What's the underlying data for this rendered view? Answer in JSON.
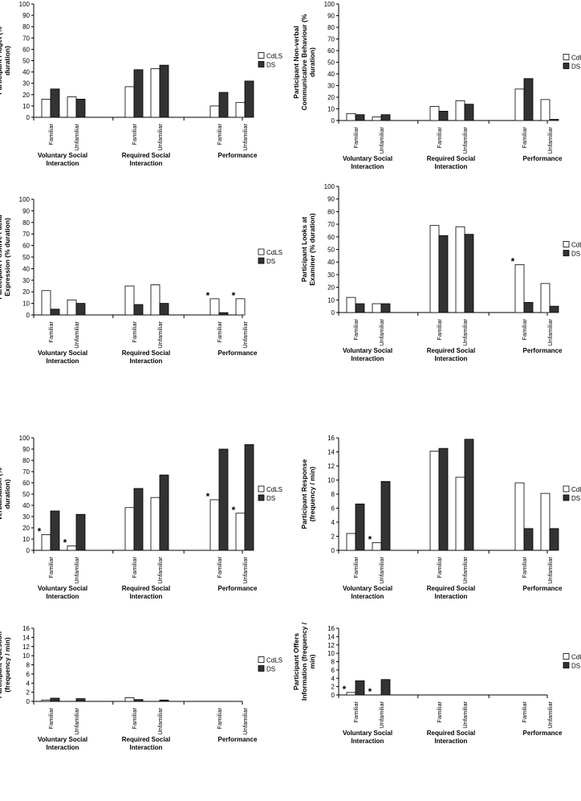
{
  "legend": {
    "cdls": "CdLS",
    "ds": "DS"
  },
  "categories": [
    "Familiar",
    "Unfamiliar",
    "Familiar",
    "Unfamiliar",
    "Familiar",
    "Unfamiliar"
  ],
  "groups": [
    "Voluntary Social Interaction",
    "Required Social Interaction",
    "Performance"
  ],
  "chart_data": [
    {
      "type": "bar",
      "ylabel": "Participant Fidget (% duration)",
      "ylim": [
        0,
        100
      ],
      "yticks": [
        0,
        10,
        20,
        30,
        40,
        50,
        60,
        70,
        80,
        90,
        100
      ],
      "categories": [
        "Familiar",
        "Unfamiliar",
        "Familiar",
        "Unfamiliar",
        "Familiar",
        "Unfamiliar"
      ],
      "groups": [
        "Voluntary Social Interaction",
        "Required Social Interaction",
        "Performance"
      ],
      "series": [
        {
          "name": "CdLS",
          "values": [
            16,
            18,
            27,
            43,
            10,
            13
          ]
        },
        {
          "name": "DS",
          "values": [
            25,
            16,
            42,
            46,
            22,
            32
          ]
        }
      ],
      "significant": []
    },
    {
      "type": "bar",
      "ylabel": "Participant Non-verbal Communicative Behaviour (% duration)",
      "ylim": [
        0,
        100
      ],
      "yticks": [
        0,
        10,
        20,
        30,
        40,
        50,
        60,
        70,
        80,
        90,
        100
      ],
      "categories": [
        "Familiar",
        "Unfamiliar",
        "Familiar",
        "Unfamiliar",
        "Familiar",
        "Unfamiliar"
      ],
      "groups": [
        "Voluntary Social Interaction",
        "Required Social Interaction",
        "Performance"
      ],
      "series": [
        {
          "name": "CdLS",
          "values": [
            6,
            3,
            12,
            17,
            27,
            18
          ]
        },
        {
          "name": "DS",
          "values": [
            5,
            5,
            8,
            14,
            36,
            1
          ]
        }
      ],
      "significant": []
    },
    {
      "type": "bar",
      "ylabel": "Participant Positive Facial Expression (% duration)",
      "ylim": [
        0,
        100
      ],
      "yticks": [
        0,
        10,
        20,
        30,
        40,
        50,
        60,
        70,
        80,
        90,
        100
      ],
      "categories": [
        "Familiar",
        "Unfamiliar",
        "Familiar",
        "Unfamiliar",
        "Familiar",
        "Unfamiliar"
      ],
      "groups": [
        "Voluntary Social Interaction",
        "Required Social Interaction",
        "Performance"
      ],
      "series": [
        {
          "name": "CdLS",
          "values": [
            21,
            13,
            25,
            26,
            14,
            14
          ]
        },
        {
          "name": "DS",
          "values": [
            5,
            10,
            9,
            10,
            2,
            0
          ]
        }
      ],
      "significant": [
        4,
        5
      ]
    },
    {
      "type": "bar",
      "ylabel": "Participant Looks at Examiner (% duration)",
      "ylim": [
        0,
        100
      ],
      "yticks": [
        0,
        10,
        20,
        30,
        40,
        50,
        60,
        70,
        80,
        90,
        100
      ],
      "categories": [
        "Familiar",
        "Unfamiliar",
        "Familiar",
        "Unfamiliar",
        "Familiar",
        "Unfamiliar"
      ],
      "groups": [
        "Voluntary Social Interaction",
        "Required Social Interaction",
        "Performance"
      ],
      "series": [
        {
          "name": "CdLS",
          "values": [
            12,
            7,
            69,
            68,
            38,
            23
          ]
        },
        {
          "name": "DS",
          "values": [
            7,
            7,
            61,
            62,
            8,
            5
          ]
        }
      ],
      "significant": [
        4
      ]
    },
    {
      "type": "bar",
      "ylabel": "Participant Verbalisation (% duration)",
      "ylim": [
        0,
        100
      ],
      "yticks": [
        0,
        10,
        20,
        30,
        40,
        50,
        60,
        70,
        80,
        90,
        100
      ],
      "categories": [
        "Familiar",
        "Unfamiliar",
        "Familiar",
        "Unfamiliar",
        "Familiar",
        "Unfamiliar"
      ],
      "groups": [
        "Voluntary Social Interaction",
        "Required Social Interaction",
        "Performance"
      ],
      "series": [
        {
          "name": "CdLS",
          "values": [
            14,
            4,
            38,
            47,
            45,
            33
          ]
        },
        {
          "name": "DS",
          "values": [
            35,
            32,
            55,
            67,
            90,
            94
          ]
        }
      ],
      "significant": [
        0,
        1,
        4,
        5
      ]
    },
    {
      "type": "bar",
      "ylabel": "Participant Response (frequency / min)",
      "ylim": [
        0,
        16
      ],
      "yticks": [
        0,
        2,
        4,
        6,
        8,
        10,
        12,
        14,
        16
      ],
      "categories": [
        "Familiar",
        "Unfamiliar",
        "Familiar",
        "Unfamiliar",
        "Familiar",
        "Unfamiliar"
      ],
      "groups": [
        "Voluntary Social Interaction",
        "Required Social Interaction",
        "Performance"
      ],
      "series": [
        {
          "name": "CdLS",
          "values": [
            2.4,
            1.1,
            14.1,
            10.4,
            9.6,
            8.1
          ]
        },
        {
          "name": "DS",
          "values": [
            6.6,
            9.8,
            14.5,
            15.8,
            3.1,
            3.1
          ]
        }
      ],
      "significant": [
        1
      ]
    },
    {
      "type": "bar",
      "ylabel": "Participant Question (frequency / min)",
      "ylim": [
        0,
        16
      ],
      "yticks": [
        0,
        2,
        4,
        6,
        8,
        10,
        12,
        14,
        16
      ],
      "categories": [
        "Familiar",
        "Unfamiliar",
        "Familiar",
        "Unfamiliar",
        "Familiar",
        "Unfamiliar"
      ],
      "groups": [
        "Voluntary Social Interaction",
        "Required Social Interaction",
        "Performance"
      ],
      "series": [
        {
          "name": "CdLS",
          "values": [
            0.3,
            0,
            0.8,
            0,
            0,
            0
          ]
        },
        {
          "name": "DS",
          "values": [
            0.7,
            0.6,
            0.4,
            0.3,
            0,
            0
          ]
        }
      ],
      "significant": []
    },
    {
      "type": "bar",
      "ylabel": "Participant Offers Information (frequency / min)",
      "ylim": [
        0,
        16
      ],
      "yticks": [
        0,
        2,
        4,
        6,
        8,
        10,
        12,
        14,
        16
      ],
      "categories": [
        "Familiar",
        "Unfamiliar",
        "Familiar",
        "Unfamiliar",
        "Familiar",
        "Unfamiliar"
      ],
      "groups": [
        "Voluntary Social Interaction",
        "Required Social Interaction",
        "Performance"
      ],
      "series": [
        {
          "name": "CdLS",
          "values": [
            0.6,
            0,
            0,
            0,
            0,
            0
          ]
        },
        {
          "name": "DS",
          "values": [
            3.4,
            3.7,
            0,
            0,
            0,
            0
          ]
        }
      ],
      "significant": [
        0,
        1
      ]
    }
  ]
}
